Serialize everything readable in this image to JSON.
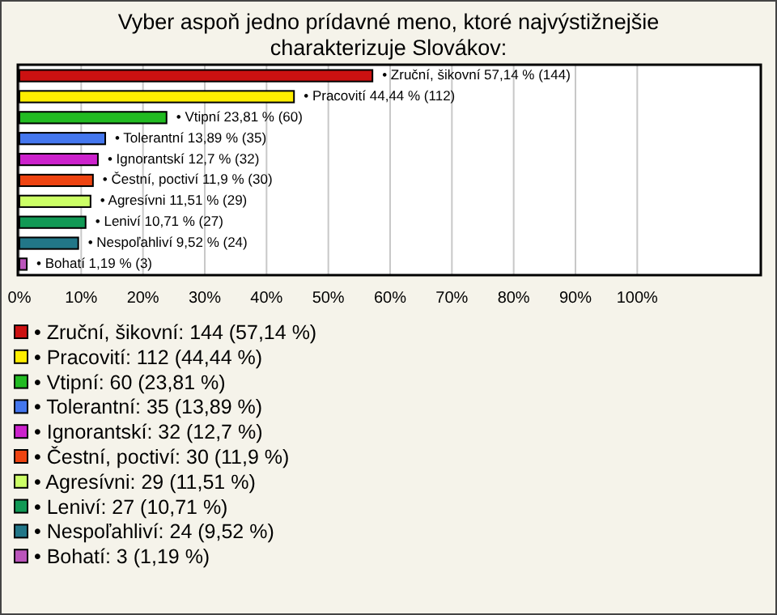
{
  "chart_data": {
    "type": "bar",
    "orientation": "horizontal",
    "title": "Vyber aspoň jedno prídavné meno, ktoré najvýstižnejšie charakterizuje Slovákov:",
    "categories": [
      null,
      null,
      null,
      null,
      null,
      null,
      null,
      null,
      null,
      null
    ],
    "values": [
      57.14,
      44.44,
      23.81,
      13.89,
      12.7,
      11.9,
      11.51,
      10.71,
      9.52,
      1.19
    ],
    "colors": [
      "#cc1111",
      "#ffee00",
      "#22bb22",
      "#4477ee",
      "#cc22cc",
      "#ee4411",
      "#ccff66",
      "#119955",
      "#227788",
      "#bb55bb"
    ],
    "value_labels": [
      "• Zruční, šikovní 57,14 % (144)",
      "• Pracovití 44,44 % (112)",
      "• Vtipní 23,81 % (60)",
      "• Tolerantní 13,89 % (35)",
      "• Ignorantskí 12,7 % (32)",
      "• Čestní, poctiví 11,9 % (30)",
      "• Agresívni 11,51 % (29)",
      "• Leniví 10,71 % (27)",
      "• Nespoľahliví 9,52 % (24)",
      "• Bohatí 1,19 % (3)"
    ],
    "annotations": [
      "• Zruční, šikovní: 144 (57,14 %)",
      "• Pracovití: 112 (44,44 %)",
      "• Vtipní: 60 (23,81 %)",
      "• Tolerantní: 35 (13,89 %)",
      "• Ignorantskí: 32 (12,7 %)",
      "• Čestní, poctiví: 30 (11,9 %)",
      "• Agresívni: 29 (11,51 %)",
      "• Leniví: 27 (10,71 %)",
      "• Nespoľahliví: 24 (9,52 %)",
      "• Bohatí: 3 (1,19 %)"
    ],
    "xlim": [
      0,
      120
    ],
    "xticks": [
      {
        "value": 0,
        "label": "0%"
      },
      {
        "value": 10,
        "label": "10%"
      },
      {
        "value": 20,
        "label": "20%"
      },
      {
        "value": 30,
        "label": "30%"
      },
      {
        "value": 40,
        "label": "40%"
      },
      {
        "value": 50,
        "label": "50%"
      },
      {
        "value": 60,
        "label": "60%"
      },
      {
        "value": 70,
        "label": "70%"
      },
      {
        "value": 80,
        "label": "80%"
      },
      {
        "value": 90,
        "label": "90%"
      },
      {
        "value": 100,
        "label": "100%"
      }
    ],
    "grid": "x",
    "tick_labels": "x"
  }
}
